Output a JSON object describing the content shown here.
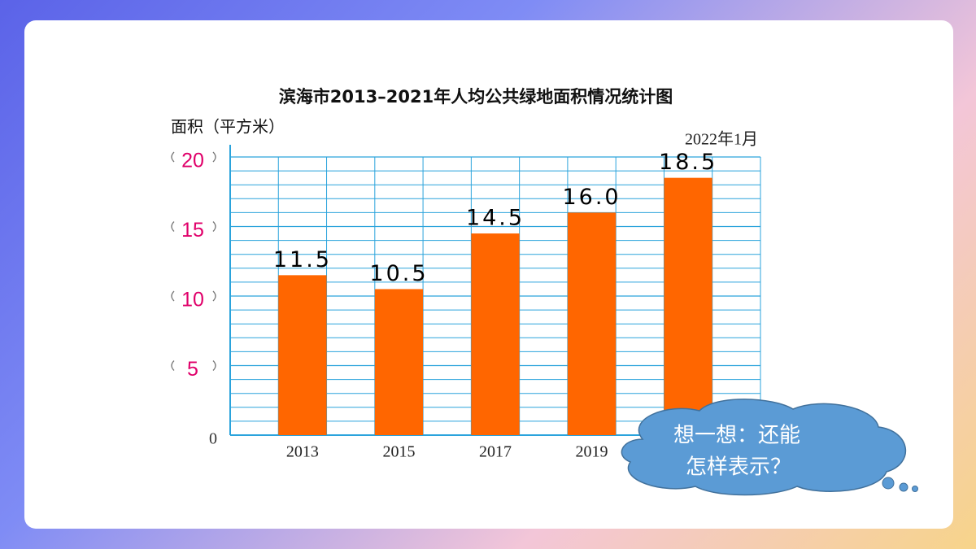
{
  "chart_data": {
    "type": "bar",
    "title": "滨海市2013–2021年人均公共绿地面积情况统计图",
    "y_label": "面积（平方米）",
    "note": "2022年1月",
    "categories": [
      "2013",
      "2015",
      "2017",
      "2019",
      null
    ],
    "values": [
      11.5,
      10.5,
      14.5,
      16.0,
      18.5
    ],
    "value_labels": [
      "11.5",
      "10.5",
      "14.5",
      "16.0",
      "18.5"
    ],
    "color": "#ff6600",
    "ylim": [
      0,
      20
    ],
    "yticks": [
      0,
      5,
      10,
      15,
      20
    ],
    "grid": true
  },
  "callout": {
    "lines": [
      "想一想：还能",
      "怎样表示？"
    ]
  }
}
